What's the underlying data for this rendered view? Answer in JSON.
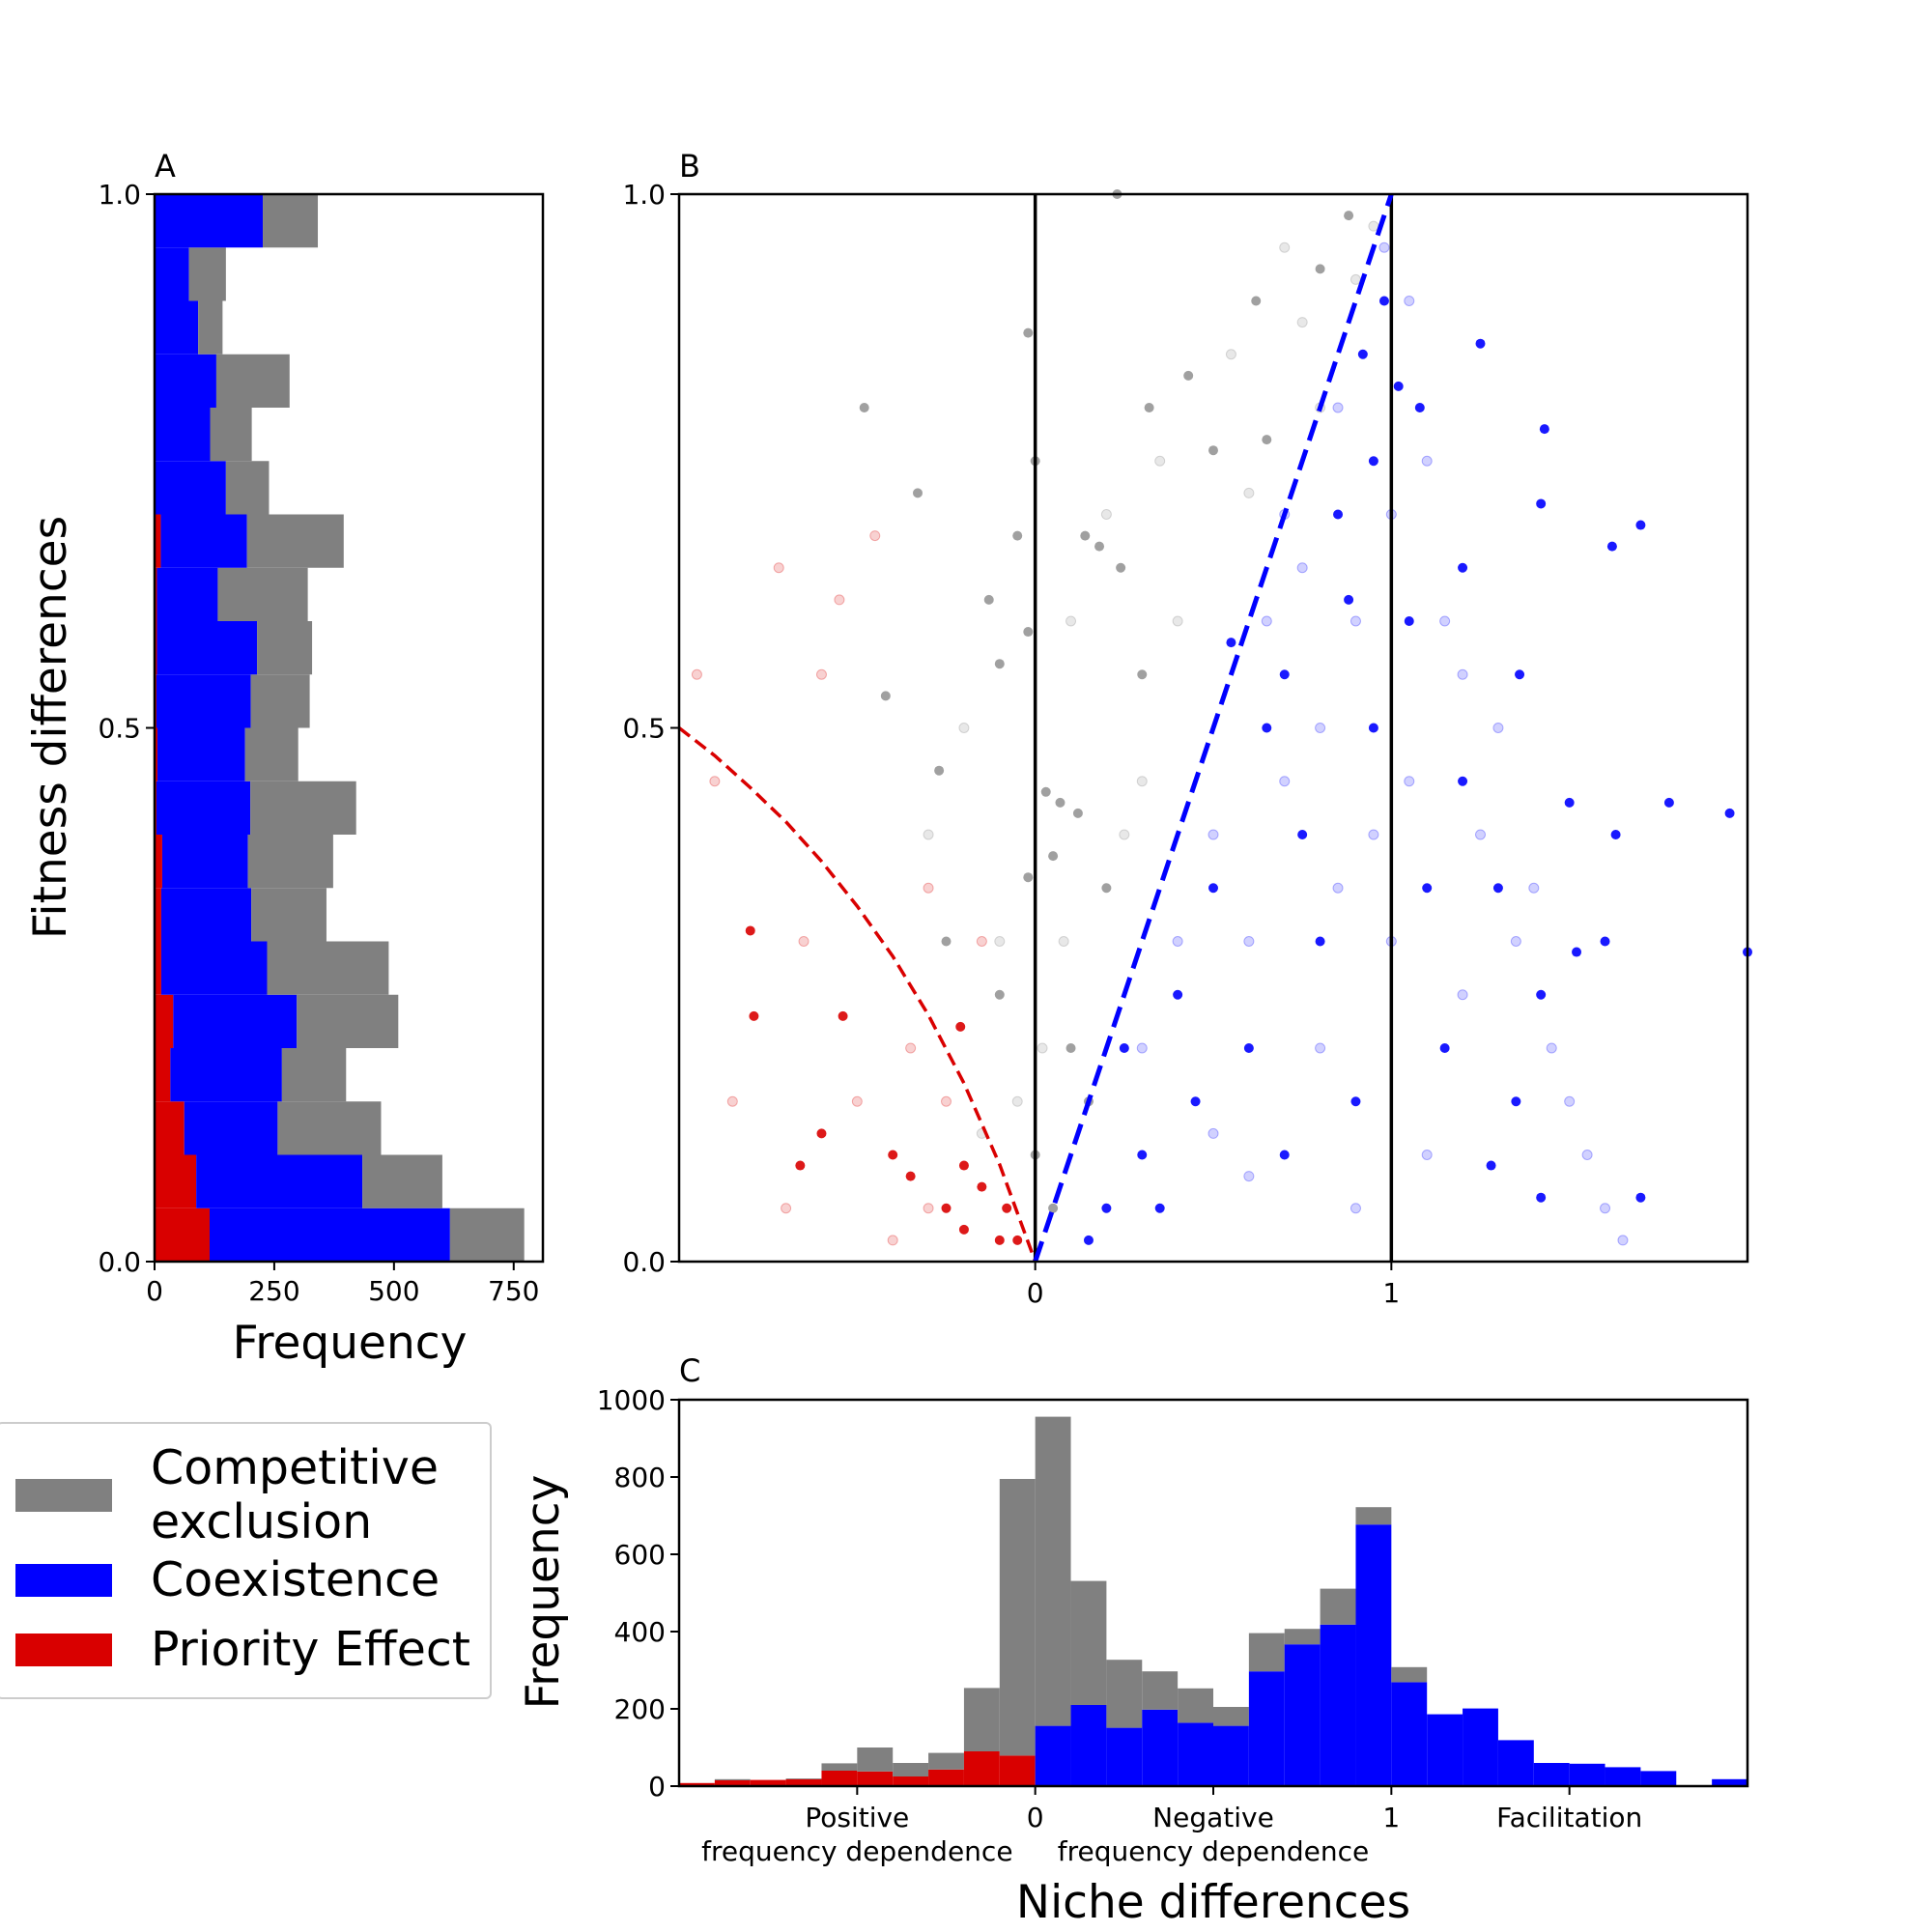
{
  "colors": {
    "competitive_exclusion": "#808080",
    "coexistence": "#0000ff",
    "priority_effect": "#d90000"
  },
  "legend": {
    "items": [
      {
        "key": "competitive_exclusion",
        "label_line1": "Competitive",
        "label_line2": "exclusion"
      },
      {
        "key": "coexistence",
        "label_line1": "Coexistence",
        "label_line2": ""
      },
      {
        "key": "priority_effect",
        "label_line1": "Priority Effect",
        "label_line2": ""
      }
    ]
  },
  "chart_data": [
    {
      "panel": "A",
      "type": "bar",
      "orientation": "horizontal",
      "stacked": true,
      "xlabel": "Frequency",
      "ylabel": "Fitness differences",
      "xlim": [
        0,
        811
      ],
      "ylim": [
        0,
        1
      ],
      "xticks": [
        0,
        250,
        500,
        750
      ],
      "yticks": [
        0.0,
        0.5,
        1.0
      ],
      "ytick_labels": [
        "0.0",
        "0.5",
        "1.0"
      ],
      "bin_edges": [
        0,
        0.05,
        0.1,
        0.15,
        0.2,
        0.25,
        0.3,
        0.35,
        0.4,
        0.45,
        0.5,
        0.55,
        0.6,
        0.65,
        0.7,
        0.75,
        0.8,
        0.85,
        0.9,
        0.95,
        1.0
      ],
      "series": [
        {
          "name": "Priority Effect",
          "key": "priority_effect",
          "values": [
            115,
            87,
            62,
            33,
            39,
            14,
            14,
            16,
            4,
            6,
            4,
            5,
            5,
            13,
            0,
            0,
            0,
            0,
            0,
            0
          ]
        },
        {
          "name": "Coexistence",
          "key": "coexistence",
          "values": [
            502,
            347,
            195,
            233,
            258,
            221,
            188,
            179,
            196,
            183,
            197,
            209,
            127,
            180,
            149,
            116,
            129,
            91,
            72,
            226
          ]
        },
        {
          "name": "Competitive exclusion",
          "key": "competitive_exclusion",
          "values": [
            155,
            167,
            216,
            134,
            212,
            254,
            157,
            178,
            221,
            111,
            123,
            115,
            188,
            202,
            90,
            87,
            153,
            51,
            77,
            115
          ]
        }
      ]
    },
    {
      "panel": "B",
      "type": "scatter",
      "xlim": [
        -1,
        2
      ],
      "ylim": [
        0,
        1
      ],
      "xticks": [
        0,
        1
      ],
      "yticks": [
        0.0,
        0.5,
        1.0
      ],
      "ytick_labels": [
        "0.0",
        "0.5",
        "1.0"
      ],
      "vertical_lines": [
        0,
        1
      ],
      "boundaries": [
        {
          "key": "priority_effect",
          "style": "dashed",
          "points": [
            [
              -1,
              0.5
            ],
            [
              -0.9,
              0.474
            ],
            [
              -0.8,
              0.444
            ],
            [
              -0.7,
              0.412
            ],
            [
              -0.6,
              0.375
            ],
            [
              -0.5,
              0.333
            ],
            [
              -0.4,
              0.286
            ],
            [
              -0.3,
              0.231
            ],
            [
              -0.2,
              0.167
            ],
            [
              -0.1,
              0.091
            ],
            [
              0,
              0
            ]
          ]
        },
        {
          "key": "coexistence",
          "style": "dashed",
          "points": [
            [
              0,
              0
            ],
            [
              1,
              1
            ]
          ]
        }
      ],
      "points_solid": {
        "competitive_exclusion": [
          [
            -0.48,
            0.8
          ],
          [
            -0.33,
            0.72
          ],
          [
            -0.42,
            0.53
          ],
          [
            -0.27,
            0.46
          ],
          [
            -0.13,
            0.62
          ],
          [
            -0.1,
            0.56
          ],
          [
            -0.05,
            0.68
          ],
          [
            -0.02,
            0.59
          ],
          [
            0.03,
            0.44
          ],
          [
            0.07,
            0.43
          ],
          [
            0.12,
            0.42
          ],
          [
            0.05,
            0.38
          ],
          [
            -0.02,
            0.36
          ],
          [
            0.14,
            0.68
          ],
          [
            0.18,
            0.67
          ],
          [
            0.24,
            0.65
          ],
          [
            0.3,
            0.55
          ],
          [
            0.32,
            0.8
          ],
          [
            0.43,
            0.83
          ],
          [
            0.5,
            0.76
          ],
          [
            0.62,
            0.9
          ],
          [
            0.8,
            0.93
          ],
          [
            0.88,
            0.98
          ],
          [
            0.1,
            0.2
          ],
          [
            0.0,
            0.1
          ],
          [
            0.05,
            0.05
          ],
          [
            -0.1,
            0.25
          ],
          [
            -0.25,
            0.3
          ],
          [
            0.2,
            0.35
          ],
          [
            0.15,
            0.15
          ],
          [
            -0.02,
            0.87
          ],
          [
            0.0,
            0.75
          ],
          [
            0.23,
            1.0
          ],
          [
            0.65,
            0.77
          ]
        ],
        "priority_effect": [
          [
            -0.8,
            0.31
          ],
          [
            -0.79,
            0.23
          ],
          [
            -0.54,
            0.23
          ],
          [
            -0.6,
            0.12
          ],
          [
            -0.66,
            0.09
          ],
          [
            -0.4,
            0.1
          ],
          [
            -0.35,
            0.08
          ],
          [
            -0.2,
            0.09
          ],
          [
            -0.25,
            0.05
          ],
          [
            -0.08,
            0.05
          ],
          [
            -0.15,
            0.07
          ],
          [
            -0.1,
            0.02
          ],
          [
            -0.05,
            0.02
          ],
          [
            -0.2,
            0.03
          ],
          [
            -0.21,
            0.22
          ]
        ],
        "coexistence": [
          [
            1.43,
            0.78
          ],
          [
            1.42,
            0.71
          ],
          [
            1.7,
            0.69
          ],
          [
            1.62,
            0.67
          ],
          [
            1.05,
            0.6
          ],
          [
            1.08,
            0.8
          ],
          [
            1.25,
            0.86
          ],
          [
            1.2,
            0.65
          ],
          [
            1.36,
            0.55
          ],
          [
            1.5,
            0.43
          ],
          [
            1.63,
            0.4
          ],
          [
            1.78,
            0.43
          ],
          [
            1.95,
            0.42
          ],
          [
            2.0,
            0.29
          ],
          [
            1.52,
            0.29
          ],
          [
            1.42,
            0.25
          ],
          [
            1.35,
            0.15
          ],
          [
            1.28,
            0.09
          ],
          [
            1.42,
            0.06
          ],
          [
            1.7,
            0.06
          ],
          [
            0.55,
            0.58
          ],
          [
            0.65,
            0.5
          ],
          [
            0.75,
            0.4
          ],
          [
            0.8,
            0.3
          ],
          [
            0.6,
            0.2
          ],
          [
            0.45,
            0.15
          ],
          [
            0.3,
            0.1
          ],
          [
            0.2,
            0.05
          ],
          [
            0.9,
            0.15
          ],
          [
            0.95,
            0.5
          ],
          [
            0.85,
            0.7
          ],
          [
            0.92,
            0.85
          ],
          [
            0.98,
            0.9
          ],
          [
            0.7,
            0.1
          ],
          [
            0.4,
            0.25
          ],
          [
            0.25,
            0.2
          ],
          [
            1.1,
            0.35
          ],
          [
            1.15,
            0.2
          ],
          [
            1.2,
            0.45
          ],
          [
            0.5,
            0.35
          ],
          [
            0.88,
            0.62
          ],
          [
            0.95,
            0.75
          ],
          [
            1.02,
            0.82
          ],
          [
            0.7,
            0.55
          ],
          [
            0.35,
            0.05
          ],
          [
            0.15,
            0.02
          ],
          [
            1.3,
            0.35
          ],
          [
            1.6,
            0.3
          ]
        ]
      },
      "points_faint": {
        "competitive_exclusion": [
          [
            -0.3,
            0.4
          ],
          [
            -0.2,
            0.5
          ],
          [
            -0.1,
            0.3
          ],
          [
            0.02,
            0.2
          ],
          [
            0.1,
            0.6
          ],
          [
            0.2,
            0.7
          ],
          [
            0.35,
            0.75
          ],
          [
            0.4,
            0.6
          ],
          [
            0.55,
            0.85
          ],
          [
            0.6,
            0.72
          ],
          [
            0.7,
            0.95
          ],
          [
            0.75,
            0.88
          ],
          [
            0.8,
            0.8
          ],
          [
            0.9,
            0.92
          ],
          [
            0.95,
            0.97
          ],
          [
            -0.05,
            0.15
          ],
          [
            0.08,
            0.3
          ],
          [
            0.25,
            0.4
          ],
          [
            -0.15,
            0.12
          ],
          [
            0.3,
            0.45
          ]
        ],
        "priority_effect": [
          [
            -0.95,
            0.55
          ],
          [
            -0.9,
            0.45
          ],
          [
            -0.72,
            0.65
          ],
          [
            -0.6,
            0.55
          ],
          [
            -0.55,
            0.62
          ],
          [
            -0.45,
            0.68
          ],
          [
            -0.3,
            0.35
          ],
          [
            -0.35,
            0.2
          ],
          [
            -0.5,
            0.15
          ],
          [
            -0.7,
            0.05
          ],
          [
            -0.85,
            0.15
          ],
          [
            -0.4,
            0.02
          ],
          [
            -0.3,
            0.05
          ],
          [
            -0.15,
            0.3
          ],
          [
            -0.25,
            0.15
          ],
          [
            -0.65,
            0.3
          ]
        ],
        "coexistence": [
          [
            0.3,
            0.2
          ],
          [
            0.4,
            0.3
          ],
          [
            0.5,
            0.4
          ],
          [
            0.6,
            0.3
          ],
          [
            0.65,
            0.6
          ],
          [
            0.7,
            0.45
          ],
          [
            0.75,
            0.65
          ],
          [
            0.8,
            0.5
          ],
          [
            0.85,
            0.8
          ],
          [
            0.9,
            0.6
          ],
          [
            0.95,
            0.4
          ],
          [
            1.0,
            0.7
          ],
          [
            1.05,
            0.9
          ],
          [
            1.1,
            0.75
          ],
          [
            1.15,
            0.6
          ],
          [
            1.2,
            0.55
          ],
          [
            1.25,
            0.4
          ],
          [
            1.3,
            0.5
          ],
          [
            1.35,
            0.3
          ],
          [
            1.4,
            0.35
          ],
          [
            1.45,
            0.2
          ],
          [
            1.5,
            0.15
          ],
          [
            1.55,
            0.1
          ],
          [
            1.6,
            0.05
          ],
          [
            1.65,
            0.02
          ],
          [
            1.1,
            0.1
          ],
          [
            0.9,
            0.05
          ],
          [
            0.6,
            0.08
          ],
          [
            0.5,
            0.12
          ],
          [
            0.8,
            0.2
          ],
          [
            1.0,
            0.3
          ],
          [
            1.2,
            0.25
          ],
          [
            0.7,
            0.7
          ],
          [
            0.98,
            0.95
          ],
          [
            1.05,
            0.45
          ],
          [
            0.85,
            0.35
          ]
        ]
      }
    },
    {
      "panel": "C",
      "type": "bar",
      "stacked": true,
      "xlabel": "Niche differences",
      "ylabel": "Frequency",
      "xlim": [
        -1,
        2
      ],
      "ylim": [
        0,
        1000
      ],
      "yticks": [
        0,
        200,
        400,
        600,
        800,
        1000
      ],
      "xticks": [
        -0.5,
        0,
        0.5,
        1,
        1.5
      ],
      "xtick_labels": [
        "Positive",
        "0",
        "Negative",
        "1",
        "Facilitation"
      ],
      "xtick_sublabels": [
        "frequency dependence",
        "",
        "frequency dependence",
        "",
        ""
      ],
      "bin_start": -1.0,
      "bin_width": 0.1,
      "series": [
        {
          "name": "Priority Effect",
          "key": "priority_effect",
          "values": [
            8,
            15,
            16,
            18,
            40,
            38,
            25,
            43,
            90,
            79,
            0,
            0,
            0,
            0,
            0,
            0,
            0,
            0,
            0,
            0,
            0,
            0,
            0,
            0,
            0,
            0,
            0,
            0,
            0,
            0
          ]
        },
        {
          "name": "Coexistence",
          "key": "coexistence",
          "values": [
            0,
            0,
            0,
            0,
            0,
            0,
            0,
            0,
            0,
            0,
            156,
            210,
            151,
            198,
            164,
            156,
            297,
            367,
            418,
            677,
            269,
            186,
            201,
            119,
            60,
            58,
            49,
            39,
            0,
            18
          ]
        },
        {
          "name": "Competitive exclusion",
          "key": "competitive_exclusion",
          "values": [
            0,
            3,
            0,
            2,
            19,
            62,
            35,
            43,
            164,
            716,
            800,
            321,
            176,
            99,
            89,
            49,
            99,
            40,
            93,
            45,
            39,
            0,
            0,
            0,
            0,
            0,
            0,
            0,
            0,
            0
          ]
        }
      ]
    }
  ],
  "panels": {
    "a_label": "A",
    "b_label": "B",
    "c_label": "C"
  }
}
